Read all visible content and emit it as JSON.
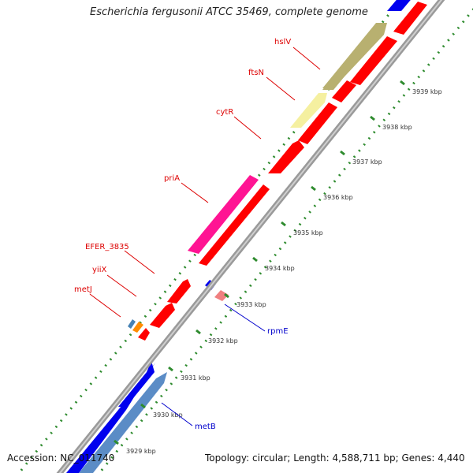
{
  "title": "Escherichia fergusonii ATCC 35469, complete genome",
  "footer": {
    "accession": "Accession: NC_011740",
    "summary": "Topology: circular; Length: 4,588,711 bp; Genes: 4,440"
  },
  "colors": {
    "plus_strand_gene": "#ff0000",
    "minus_strand_gene": "#0000ee",
    "backbone": "#9a9a9a",
    "dotted_track": "#2e8b2e",
    "label_red": "#dd0000",
    "label_blue": "#0000cc"
  },
  "gene_labels": [
    {
      "name": "hslV",
      "strand": "plus"
    },
    {
      "name": "ftsN",
      "strand": "plus"
    },
    {
      "name": "cytR",
      "strand": "plus"
    },
    {
      "name": "priA",
      "strand": "plus"
    },
    {
      "name": "EFER_3835",
      "strand": "plus"
    },
    {
      "name": "yiiX",
      "strand": "plus"
    },
    {
      "name": "metJ",
      "strand": "plus"
    },
    {
      "name": "rpmE",
      "strand": "minus"
    },
    {
      "name": "metB",
      "strand": "minus"
    }
  ],
  "kbp_ticks": [
    "3939 kbp",
    "3938 kbp",
    "3937 kbp",
    "3936 kbp",
    "3935 kbp",
    "3934 kbp",
    "3933 kbp",
    "3932 kbp",
    "3931 kbp",
    "3930 kbp",
    "3929 kbp"
  ]
}
